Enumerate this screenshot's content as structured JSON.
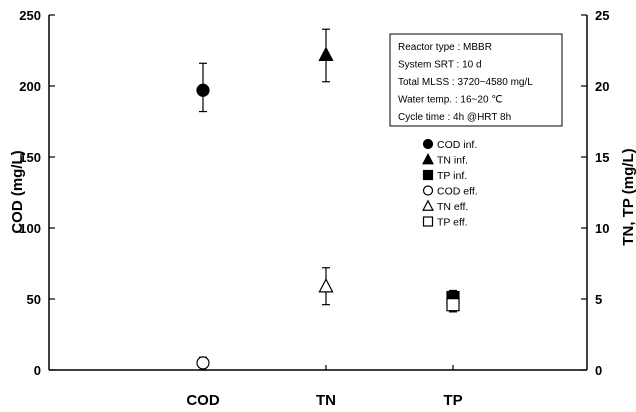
{
  "chart_data": {
    "type": "scatter",
    "categories": [
      "COD",
      "TN",
      "TP"
    ],
    "ylabel_left": "COD (mg/L)",
    "ylabel_right": "TN, TP (mg/L)",
    "ylim_left": [
      0,
      250
    ],
    "ylim_right": [
      0,
      25
    ],
    "yticks_left": [
      0,
      50,
      100,
      150,
      200,
      250
    ],
    "yticks_right": [
      0,
      5,
      10,
      15,
      20,
      25
    ],
    "grid": false,
    "legend_position": "right",
    "series": [
      {
        "name": "COD inf.",
        "marker": "circle",
        "filled": true,
        "axis": "left",
        "category": "COD",
        "value": 197,
        "err_low": 182,
        "err_high": 216
      },
      {
        "name": "TN inf.",
        "marker": "triangle",
        "filled": true,
        "axis": "right",
        "category": "TN",
        "value": 22.2,
        "err_low": 20.3,
        "err_high": 24
      },
      {
        "name": "TP inf.",
        "marker": "square",
        "filled": true,
        "axis": "right",
        "category": "TP",
        "value": 5.1,
        "err_low": 4.1,
        "err_high": 5.6
      },
      {
        "name": "COD eff.",
        "marker": "circle",
        "filled": false,
        "axis": "left",
        "category": "COD",
        "value": 5,
        "err_low": 0,
        "err_high": 9
      },
      {
        "name": "TN eff.",
        "marker": "triangle",
        "filled": false,
        "axis": "right",
        "category": "TN",
        "value": 5.9,
        "err_low": 4.6,
        "err_high": 7.2
      },
      {
        "name": "TP eff.",
        "marker": "square",
        "filled": false,
        "axis": "right",
        "category": "TP",
        "value": 4.6,
        "err_low": 4.1,
        "err_high": 5.4
      }
    ]
  },
  "info_box": {
    "lines": [
      "Reactor type : MBBR",
      "System SRT : 10 d",
      "Total MLSS : 3720~4580 mg/L",
      "Water temp. : 16~20 ℃",
      "Cycle time : 4h @HRT 8h"
    ]
  },
  "colors": {
    "marker": "#000000",
    "axis": "#000000",
    "background": "#ffffff"
  }
}
